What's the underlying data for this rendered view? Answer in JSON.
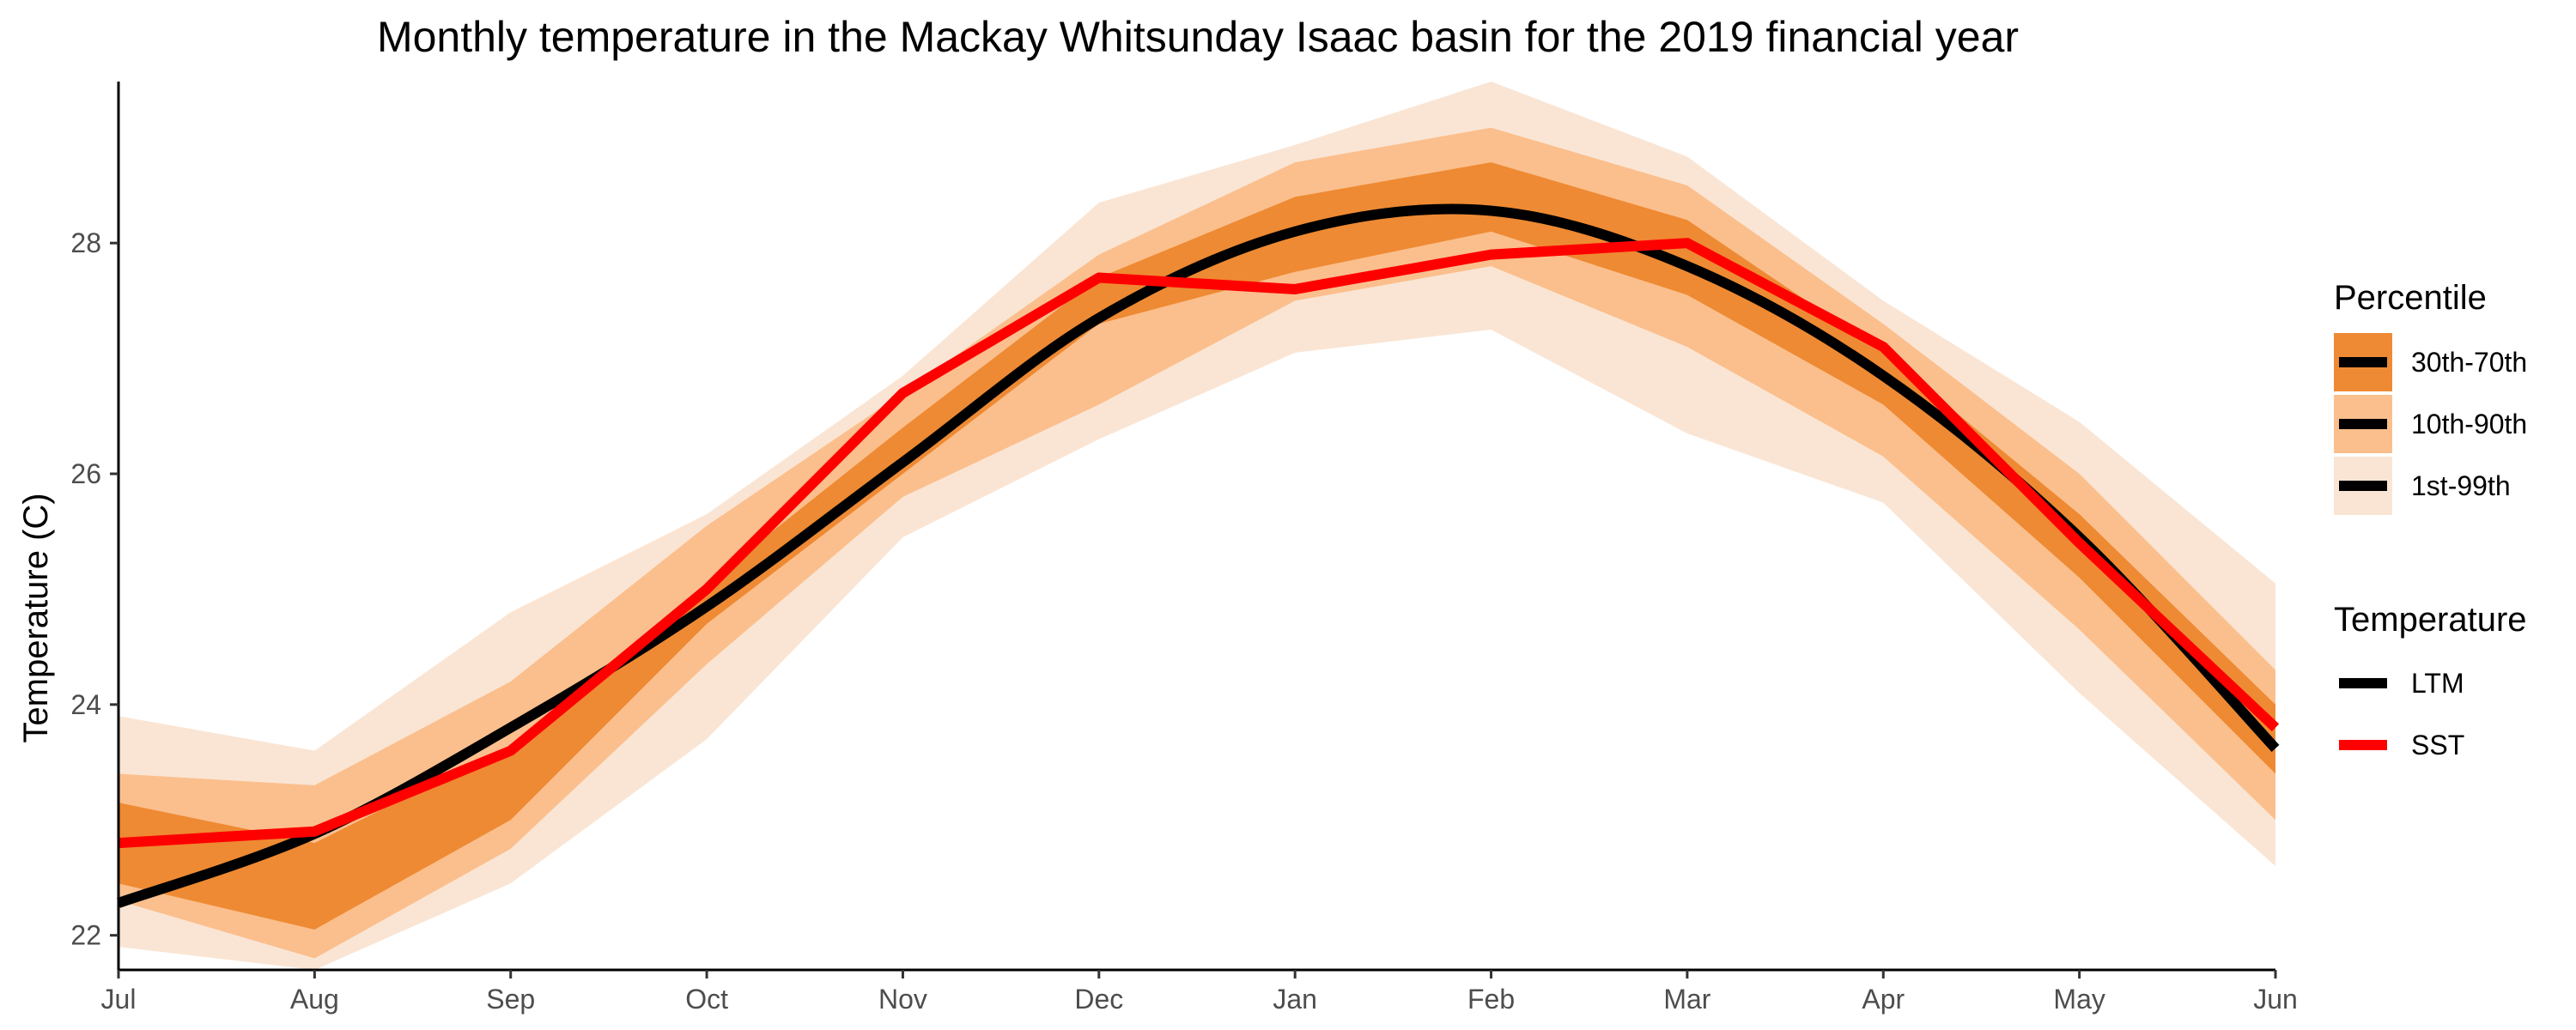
{
  "chart_data": {
    "type": "area",
    "title": "Monthly temperature in the Mackay Whitsunday Isaac basin for the 2019 financial year",
    "xlabel": "",
    "ylabel": "Temperature (C)",
    "categories": [
      "Jul",
      "Aug",
      "Sep",
      "Oct",
      "Nov",
      "Dec",
      "Jan",
      "Feb",
      "Mar",
      "Apr",
      "May",
      "Jun"
    ],
    "yticks": [
      22,
      24,
      26,
      28
    ],
    "ylim": [
      21.7,
      29.4
    ],
    "grid": false,
    "legend_position": "right",
    "bands": [
      {
        "name": "1st-99th",
        "color": "#fae5d4",
        "lower": [
          21.9,
          21.7,
          22.45,
          23.7,
          25.45,
          26.3,
          27.05,
          27.25,
          26.35,
          25.75,
          24.1,
          22.6
        ],
        "upper": [
          23.9,
          23.6,
          24.8,
          25.65,
          26.85,
          28.35,
          28.85,
          29.4,
          28.75,
          27.5,
          26.45,
          25.05
        ]
      },
      {
        "name": "10th-90th",
        "color": "#fbbf8d",
        "lower": [
          22.3,
          21.8,
          22.75,
          24.35,
          25.8,
          26.6,
          27.5,
          27.8,
          27.1,
          26.15,
          24.65,
          23.0
        ],
        "upper": [
          23.4,
          23.3,
          24.2,
          25.55,
          26.7,
          27.9,
          28.7,
          29.0,
          28.5,
          27.3,
          26.0,
          24.3
        ]
      },
      {
        "name": "30th-70th",
        "color": "#ee8a33",
        "lower": [
          22.45,
          22.05,
          23.0,
          24.7,
          26.0,
          27.3,
          27.75,
          28.1,
          27.55,
          26.6,
          25.1,
          23.4
        ],
        "upper": [
          23.15,
          22.8,
          23.65,
          25.05,
          26.4,
          27.7,
          28.4,
          28.7,
          28.2,
          27.05,
          25.65,
          24.0
        ]
      }
    ],
    "series": [
      {
        "name": "LTM",
        "color": "#000000",
        "smooth": true,
        "values": [
          22.28,
          22.88,
          23.8,
          24.85,
          26.1,
          27.35,
          28.1,
          28.28,
          27.8,
          26.85,
          25.45,
          23.62
        ]
      },
      {
        "name": "SST",
        "color": "#ff0000",
        "smooth": false,
        "values": [
          22.8,
          22.9,
          23.6,
          25.0,
          26.7,
          27.7,
          27.6,
          27.9,
          28.0,
          27.1,
          25.4,
          23.8
        ]
      }
    ],
    "legend": {
      "percentile_title": "Percentile",
      "percentile_items": [
        "30th-70th",
        "10th-90th",
        "1st-99th"
      ],
      "temperature_title": "Temperature",
      "temperature_items": [
        "LTM",
        "SST"
      ]
    }
  }
}
